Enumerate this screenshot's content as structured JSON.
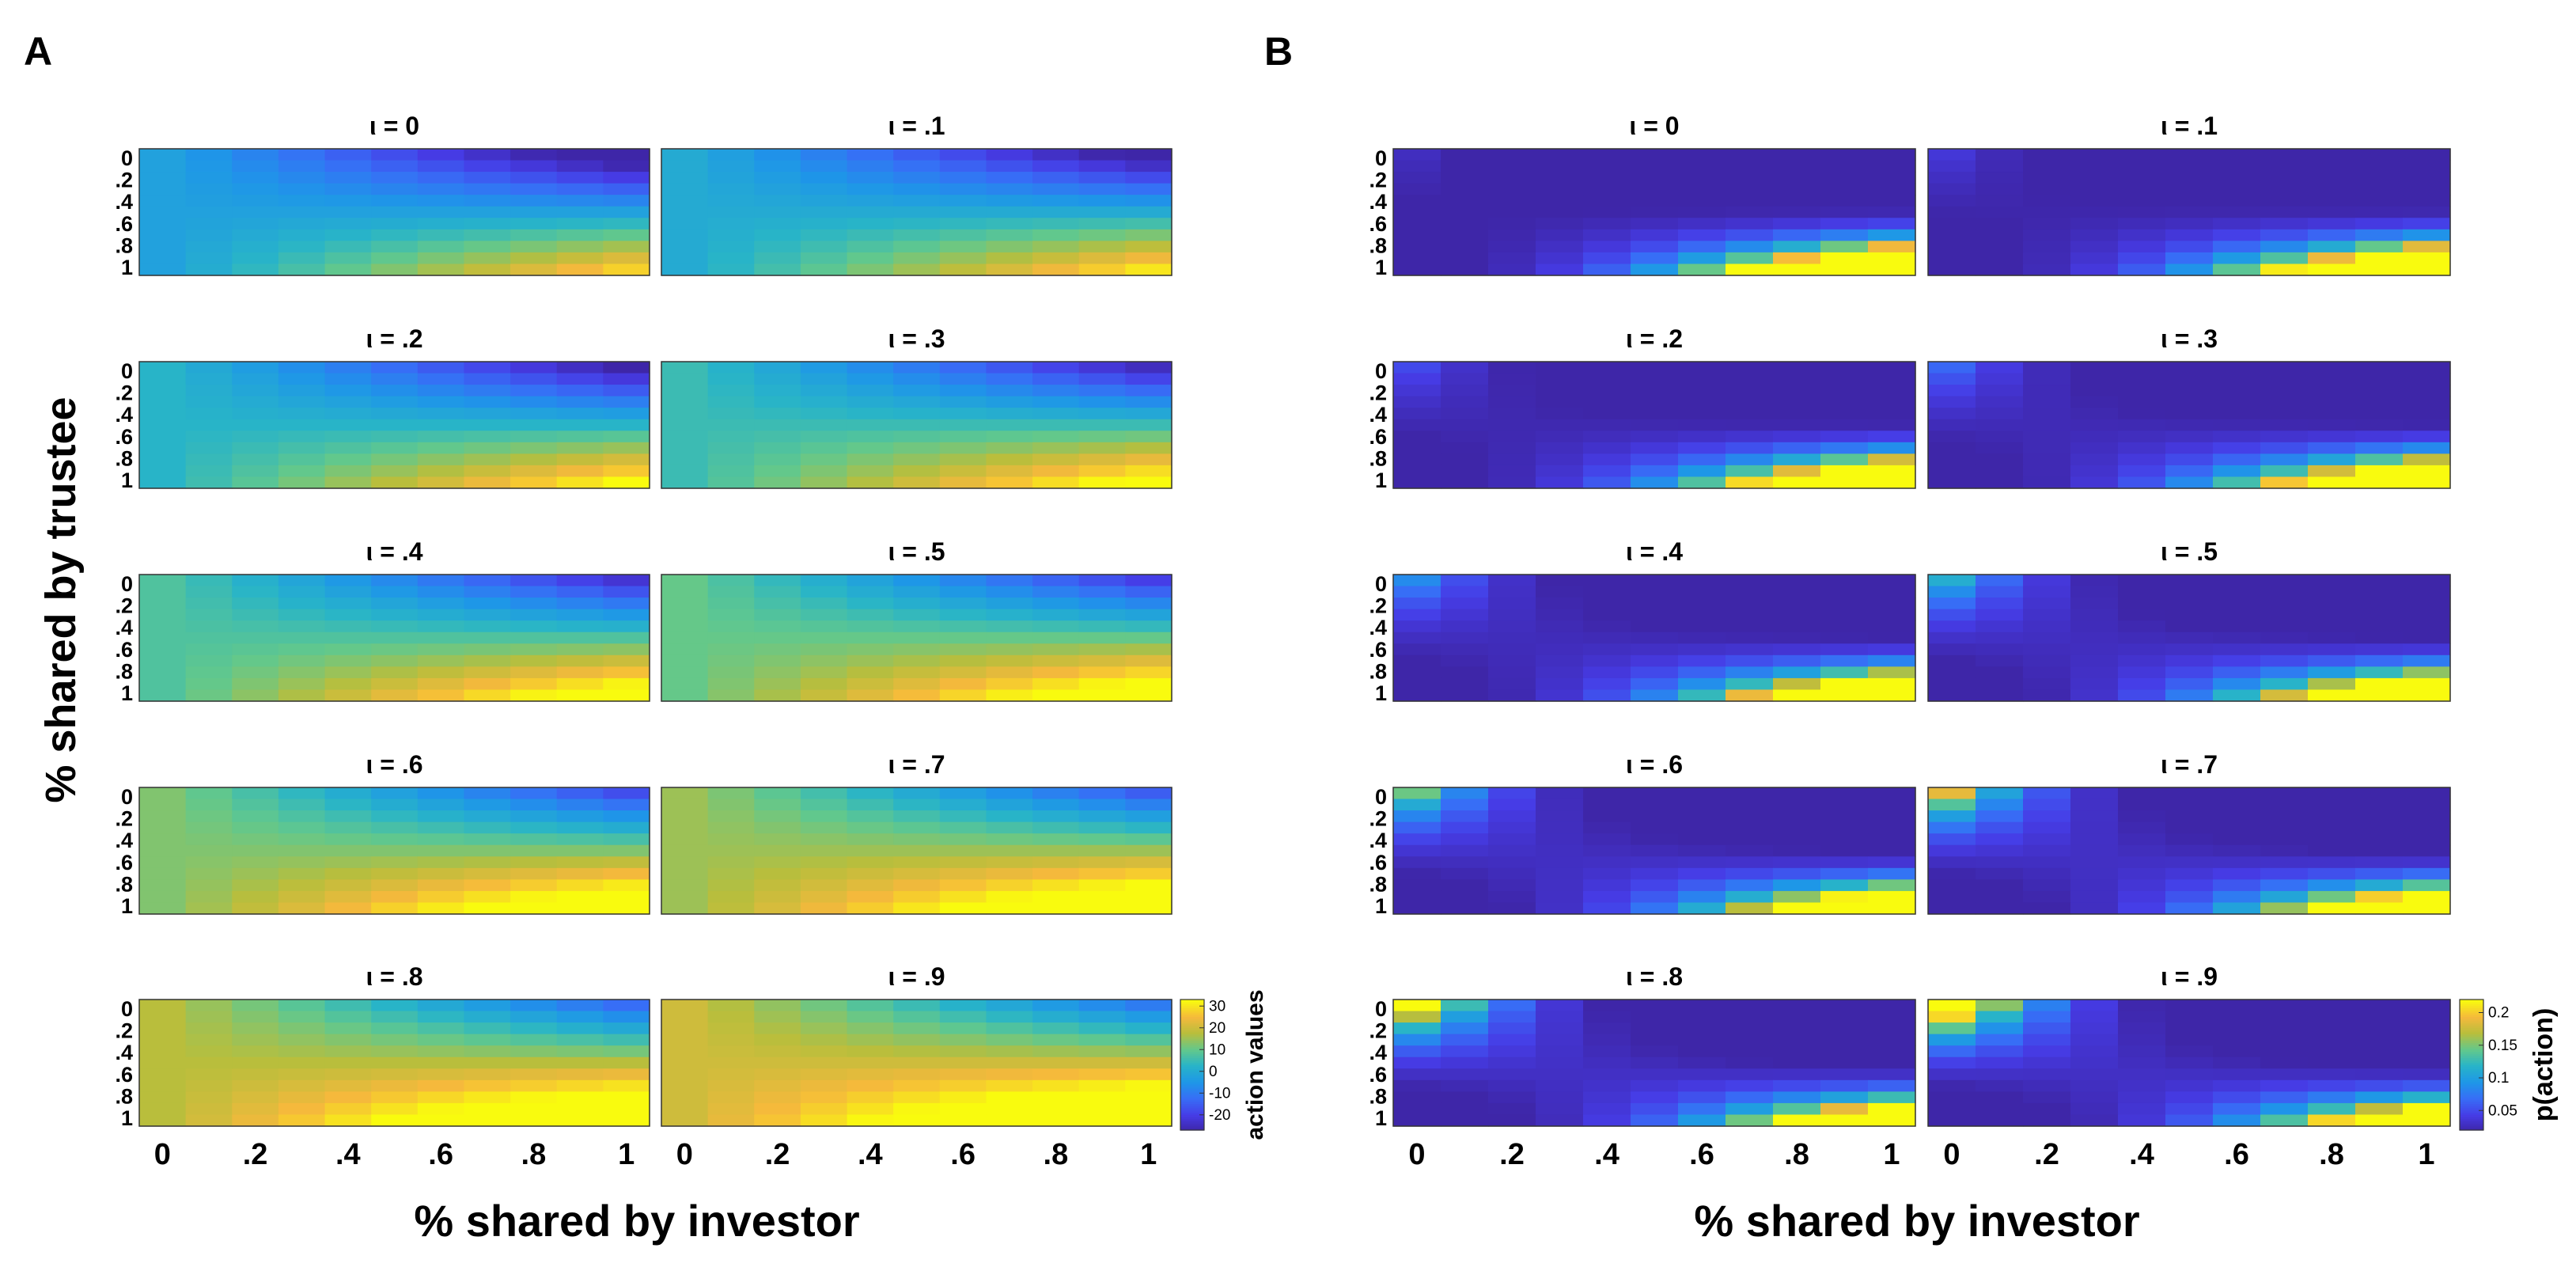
{
  "figure": {
    "panels": [
      {
        "letter": "A",
        "xlabel": "% shared by investor"
      },
      {
        "letter": "B",
        "xlabel": "% shared by investor"
      }
    ],
    "shared_ylabel": "% shared by trustee"
  },
  "chart_data": [
    {
      "type": "heatmap",
      "panel": "A",
      "kind": "action_values",
      "subplot_titles": [
        "ι = 0",
        "ι = .1",
        "ι = .2",
        "ι = .3",
        "ι = .4",
        "ι = .5",
        "ι = .6",
        "ι = .7",
        "ι = .8",
        "ι = .9"
      ],
      "iota": [
        0,
        0.1,
        0.2,
        0.3,
        0.4,
        0.5,
        0.6,
        0.7,
        0.8,
        0.9
      ],
      "x": [
        0,
        0.1,
        0.2,
        0.3,
        0.4,
        0.5,
        0.6,
        0.7,
        0.8,
        0.9,
        1.0
      ],
      "y": [
        0,
        0.1,
        0.2,
        0.3,
        0.4,
        0.5,
        0.6,
        0.7,
        0.8,
        0.9,
        1.0
      ],
      "xticklabels": [
        "0",
        ".2",
        ".4",
        ".6",
        ".8",
        "1"
      ],
      "yticklabels": [
        "0",
        ".2",
        ".4",
        ".6",
        ".8",
        "1"
      ],
      "xlabel": "% shared by investor",
      "ylabel": "% shared by trustee",
      "model": "value(x, y) = iota*25 - 2 + x*(60*y - 30)",
      "colorbar": {
        "label": "action values",
        "ticks": [
          "30",
          "20",
          "10",
          "0",
          "-10",
          "-20"
        ],
        "clim": [
          -27,
          33
        ]
      },
      "colormap": "parula"
    },
    {
      "type": "heatmap",
      "panel": "B",
      "kind": "p_action",
      "subplot_titles": [
        "ι = 0",
        "ι = .1",
        "ι = .2",
        "ι = .3",
        "ι = .4",
        "ι = .5",
        "ι = .6",
        "ι = .7",
        "ι = .8",
        "ι = .9"
      ],
      "iota": [
        0,
        0.1,
        0.2,
        0.3,
        0.4,
        0.5,
        0.6,
        0.7,
        0.8,
        0.9
      ],
      "x": [
        0,
        0.1,
        0.2,
        0.3,
        0.4,
        0.5,
        0.6,
        0.7,
        0.8,
        0.9,
        1.0
      ],
      "y": [
        0,
        0.1,
        0.2,
        0.3,
        0.4,
        0.5,
        0.6,
        0.7,
        0.8,
        0.9,
        1.0
      ],
      "xticklabels": [
        "0",
        ".2",
        ".4",
        ".6",
        ".8",
        "1"
      ],
      "yticklabels": [
        "0",
        ".2",
        ".4",
        ".6",
        ".8",
        "1"
      ],
      "xlabel": "% shared by investor",
      "model": "softmax over actions; high near x=0 for y=0 rows, peaks near x=1,y=1",
      "colorbar": {
        "label": "p(action)",
        "ticks": [
          "0.2",
          "0.15",
          "0.1",
          "0.05"
        ],
        "clim": [
          0.02,
          0.22
        ]
      },
      "colormap": "parula"
    }
  ]
}
